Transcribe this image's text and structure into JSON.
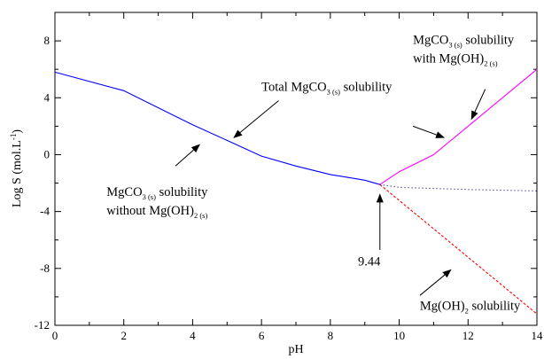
{
  "chart_data": {
    "type": "line",
    "xlabel": "pH",
    "ylabel": "Log S (mol.L",
    "ylabel_sup": "-1",
    "ylabel_close": ")",
    "xlim": [
      0,
      14
    ],
    "ylim": [
      -12,
      10
    ],
    "x_ticks": [
      0,
      2,
      4,
      6,
      8,
      10,
      12,
      14
    ],
    "y_ticks": [
      -12,
      -8,
      -4,
      0,
      4,
      8
    ],
    "grid": false,
    "series": [
      {
        "color": "#0000ff",
        "style": "solid",
        "points": [
          [
            0,
            5.8
          ],
          [
            2,
            4.5
          ],
          [
            4,
            2.1
          ],
          [
            5,
            1.0
          ],
          [
            6,
            -0.1
          ],
          [
            7,
            -0.8
          ],
          [
            8,
            -1.4
          ],
          [
            9,
            -1.8
          ],
          [
            9.44,
            -2.1
          ]
        ]
      },
      {
        "color": "#ff00ff",
        "style": "solid",
        "points": [
          [
            9.44,
            -2.1
          ],
          [
            10,
            -1.2
          ],
          [
            11,
            0.0
          ],
          [
            12,
            2.0
          ],
          [
            13,
            4.0
          ],
          [
            14,
            6.0
          ]
        ]
      },
      {
        "color": "#000080",
        "style": "dotted",
        "points": [
          [
            9.44,
            -2.1
          ],
          [
            10,
            -2.3
          ],
          [
            12,
            -2.45
          ],
          [
            14,
            -2.55
          ]
        ]
      },
      {
        "color": "#ff0000",
        "style": "dashed",
        "points": [
          [
            9.44,
            -2.1
          ],
          [
            14,
            -11.2
          ]
        ]
      }
    ],
    "annotations": [
      {
        "id": "total",
        "lines": [
          {
            "main": "Total MgCO",
            "sub": "3 (s)",
            "tail": " solubility"
          }
        ],
        "text_x": 6.0,
        "text_y": 4.5,
        "arrows": [
          {
            "from": [
              6.5,
              3.8
            ],
            "to": [
              5.2,
              1.2
            ]
          },
          {
            "from": [
              10.4,
              2.0
            ],
            "to": [
              11.3,
              1.2
            ]
          }
        ]
      },
      {
        "id": "with",
        "lines": [
          {
            "main": "MgCO",
            "sub": "3 (s)",
            "tail": " solubility"
          },
          {
            "main": "with Mg(OH)",
            "sub": "2 (s)",
            "tail": ""
          }
        ],
        "text_x": 10.4,
        "text_y": 7.8,
        "arrows": [
          {
            "from": [
              12.5,
              4.6
            ],
            "to": [
              12.1,
              2.5
            ]
          }
        ]
      },
      {
        "id": "without",
        "lines": [
          {
            "main": "MgCO",
            "sub": "3 (s)",
            "tail": " solubility"
          },
          {
            "main": "without Mg(OH)",
            "sub": "2 (s)",
            "tail": ""
          }
        ],
        "text_x": 1.5,
        "text_y": -2.9,
        "arrows": [
          {
            "from": [
              3.5,
              -0.8
            ],
            "to": [
              4.2,
              0.7
            ]
          }
        ]
      },
      {
        "id": "mgoh",
        "lines": [
          {
            "main": "Mg(OH)",
            "sub": "2",
            "tail": " solubility"
          }
        ],
        "text_x": 10.6,
        "text_y": -10.9,
        "arrows": [
          {
            "from": [
              10.6,
              -9.9
            ],
            "to": [
              11.5,
              -8.1
            ]
          }
        ]
      },
      {
        "id": "ph944",
        "lines": [
          {
            "main": "9.44",
            "sub": "",
            "tail": ""
          }
        ],
        "text_x": 8.8,
        "text_y": -7.8,
        "arrows": [
          {
            "from": [
              9.44,
              -6.7
            ],
            "to": [
              9.44,
              -2.8
            ]
          }
        ]
      }
    ]
  }
}
